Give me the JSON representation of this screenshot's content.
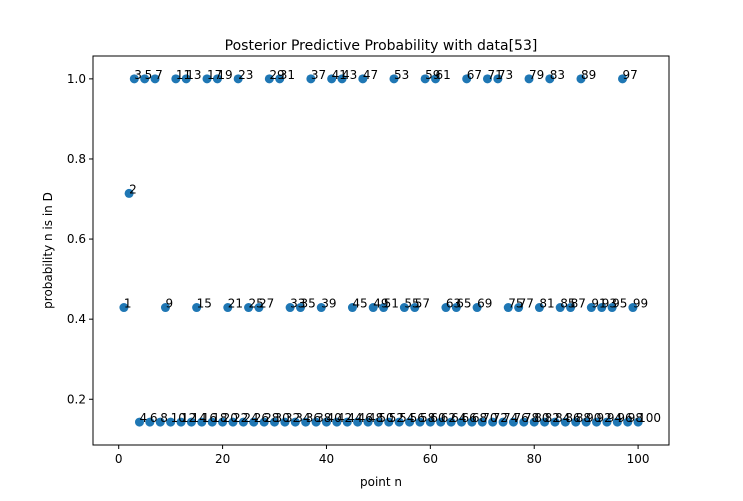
{
  "chart_data": {
    "type": "scatter",
    "title": "Posterior Predictive Probability with data[53]",
    "xlabel": "point n",
    "ylabel": "probability n is in D",
    "xlim": [
      -4.95,
      105.95
    ],
    "ylim": [
      0.0858,
      1.0571
    ],
    "xticks": [
      0,
      20,
      40,
      60,
      80,
      100
    ],
    "yticks": [
      0.2,
      0.4,
      0.6,
      0.8,
      1.0
    ],
    "xtick_labels": [
      "0",
      "20",
      "40",
      "60",
      "80",
      "100"
    ],
    "ytick_labels": [
      "0.2",
      "0.4",
      "0.6",
      "0.8",
      "1.0"
    ],
    "grid": false,
    "marker_color": "#1f77b4",
    "x": [
      1,
      2,
      3,
      4,
      5,
      6,
      7,
      8,
      9,
      10,
      11,
      12,
      13,
      14,
      15,
      16,
      17,
      18,
      19,
      20,
      21,
      22,
      23,
      24,
      25,
      26,
      27,
      28,
      29,
      30,
      31,
      32,
      33,
      34,
      35,
      36,
      37,
      38,
      39,
      40,
      41,
      42,
      43,
      44,
      45,
      46,
      47,
      48,
      49,
      50,
      51,
      52,
      53,
      54,
      55,
      56,
      57,
      58,
      59,
      60,
      61,
      62,
      63,
      64,
      65,
      66,
      67,
      68,
      69,
      70,
      71,
      72,
      73,
      74,
      75,
      76,
      77,
      78,
      79,
      80,
      81,
      82,
      83,
      84,
      85,
      86,
      87,
      88,
      89,
      90,
      91,
      92,
      93,
      94,
      95,
      96,
      97,
      98,
      99,
      100
    ],
    "y": [
      0.429,
      0.714,
      1.0,
      0.143,
      1.0,
      0.143,
      1.0,
      0.143,
      0.429,
      0.143,
      1.0,
      0.143,
      1.0,
      0.143,
      0.429,
      0.143,
      1.0,
      0.143,
      1.0,
      0.143,
      0.429,
      0.143,
      1.0,
      0.143,
      0.429,
      0.143,
      0.429,
      0.143,
      1.0,
      0.143,
      1.0,
      0.143,
      0.429,
      0.143,
      0.429,
      0.143,
      1.0,
      0.143,
      0.429,
      0.143,
      1.0,
      0.143,
      1.0,
      0.143,
      0.429,
      0.143,
      1.0,
      0.143,
      0.429,
      0.143,
      0.429,
      0.143,
      1.0,
      0.143,
      0.429,
      0.143,
      0.429,
      0.143,
      1.0,
      0.143,
      1.0,
      0.143,
      0.429,
      0.143,
      0.429,
      0.143,
      1.0,
      0.143,
      0.429,
      0.143,
      1.0,
      0.143,
      1.0,
      0.143,
      0.429,
      0.143,
      0.429,
      0.143,
      1.0,
      0.143,
      0.429,
      0.143,
      1.0,
      0.143,
      0.429,
      0.143,
      0.429,
      0.143,
      1.0,
      0.143,
      0.429,
      0.143,
      0.429,
      0.143,
      0.429,
      0.143,
      1.0,
      0.143,
      0.429,
      0.143
    ],
    "point_labels": [
      "1",
      "2",
      "3",
      "4",
      "5",
      "6",
      "7",
      "8",
      "9",
      "10",
      "11",
      "12",
      "13",
      "14",
      "15",
      "16",
      "17",
      "18",
      "19",
      "20",
      "21",
      "22",
      "23",
      "24",
      "25",
      "26",
      "27",
      "28",
      "29",
      "30",
      "31",
      "32",
      "33",
      "34",
      "35",
      "36",
      "37",
      "38",
      "39",
      "40",
      "41",
      "42",
      "43",
      "44",
      "45",
      "46",
      "47",
      "48",
      "49",
      "50",
      "51",
      "52",
      "53",
      "54",
      "55",
      "56",
      "57",
      "58",
      "59",
      "60",
      "61",
      "62",
      "63",
      "64",
      "65",
      "66",
      "67",
      "68",
      "69",
      "70",
      "71",
      "72",
      "73",
      "74",
      "75",
      "76",
      "77",
      "78",
      "79",
      "80",
      "81",
      "82",
      "83",
      "84",
      "85",
      "86",
      "87",
      "88",
      "89",
      "90",
      "91",
      "92",
      "93",
      "94",
      "95",
      "96",
      "97",
      "98",
      "99",
      "100"
    ]
  }
}
